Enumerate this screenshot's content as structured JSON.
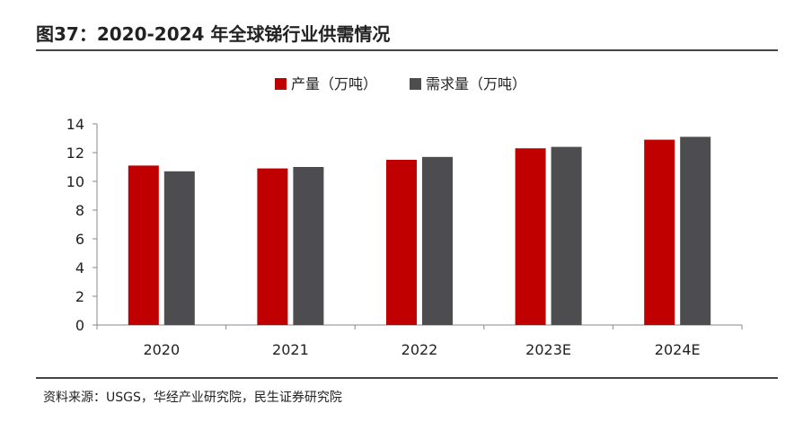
{
  "header": {
    "title": "图37：2020-2024 年全球锑行业供需情况"
  },
  "footer": {
    "source": "资料来源：USGS，华经产业研究院，民生证券研究院"
  },
  "chart_data": {
    "type": "bar",
    "categories": [
      "2020",
      "2021",
      "2022",
      "2023E",
      "2024E"
    ],
    "series": [
      {
        "name": "产量（万吨）",
        "color": "#C00000",
        "values": [
          11.1,
          10.9,
          11.5,
          12.3,
          12.9
        ]
      },
      {
        "name": "需求量（万吨）",
        "color": "#4D4D4F",
        "values": [
          10.7,
          11.0,
          11.7,
          12.4,
          13.1
        ]
      }
    ],
    "ylim": [
      0,
      14
    ],
    "yticks": [
      0,
      2,
      4,
      6,
      8,
      10,
      12,
      14
    ],
    "legend": "top-center",
    "grid": false
  }
}
